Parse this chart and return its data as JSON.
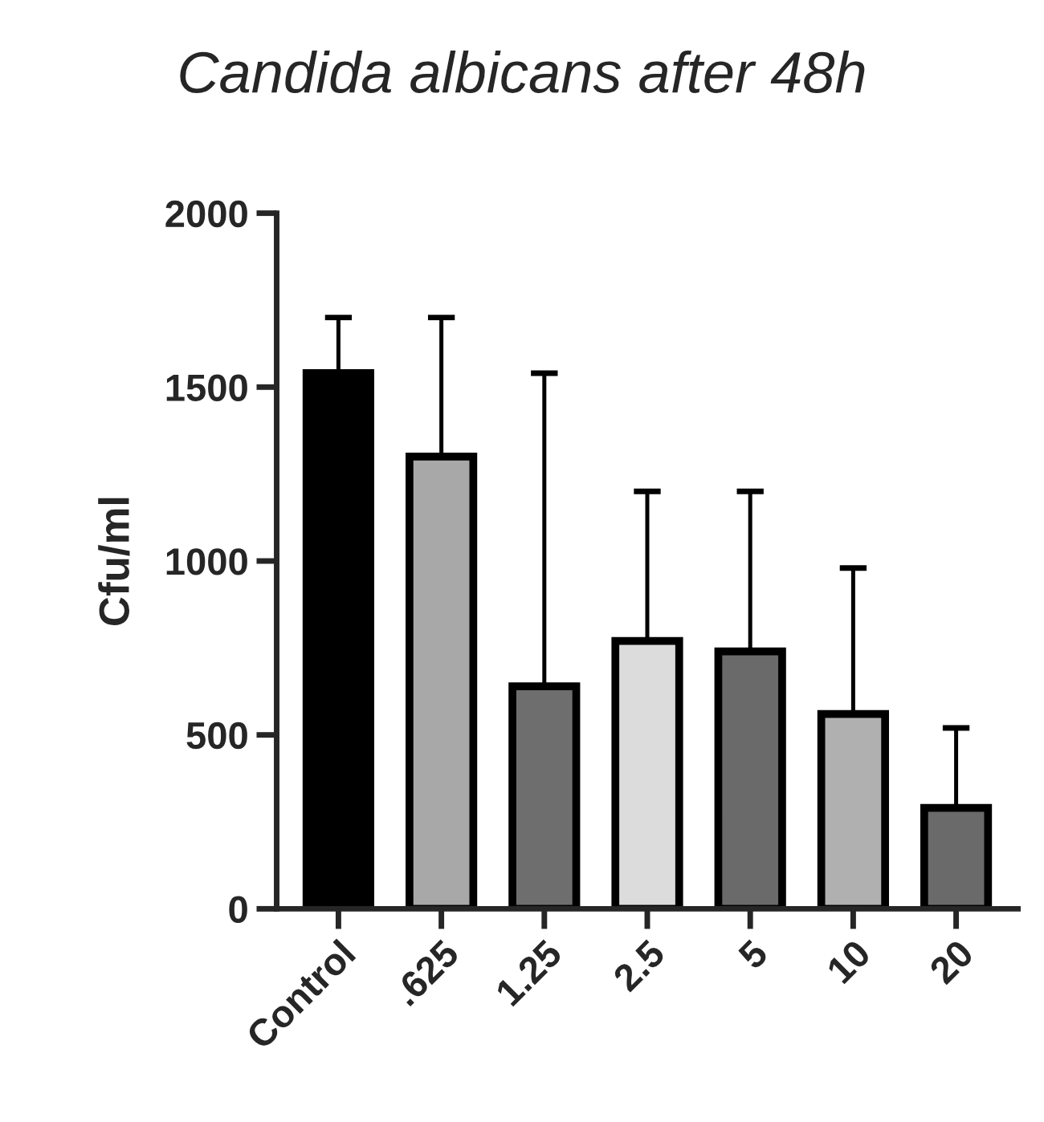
{
  "chart_data": {
    "type": "bar",
    "title": "Candida albicans after 48h",
    "ylabel": "Cfu/ml",
    "categories": [
      "Control",
      ".625",
      "1.25",
      "2.5",
      "5",
      "10",
      "20"
    ],
    "values": [
      1540,
      1300,
      640,
      770,
      740,
      560,
      290
    ],
    "errors": [
      [
        1540,
        1700
      ],
      [
        1300,
        1700
      ],
      [
        640,
        1540
      ],
      [
        770,
        1200
      ],
      [
        740,
        1200
      ],
      [
        560,
        980
      ],
      [
        290,
        520
      ]
    ],
    "colors": [
      "#000000",
      "#a8a8a8",
      "#6e6e6e",
      "#dcdcdc",
      "#6a6a6a",
      "#b0b0b0",
      "#6a6a6a"
    ],
    "ylim": [
      0,
      2000
    ],
    "yticks": [
      0,
      500,
      1000,
      1500,
      2000
    ],
    "grid": false,
    "legend": false
  }
}
